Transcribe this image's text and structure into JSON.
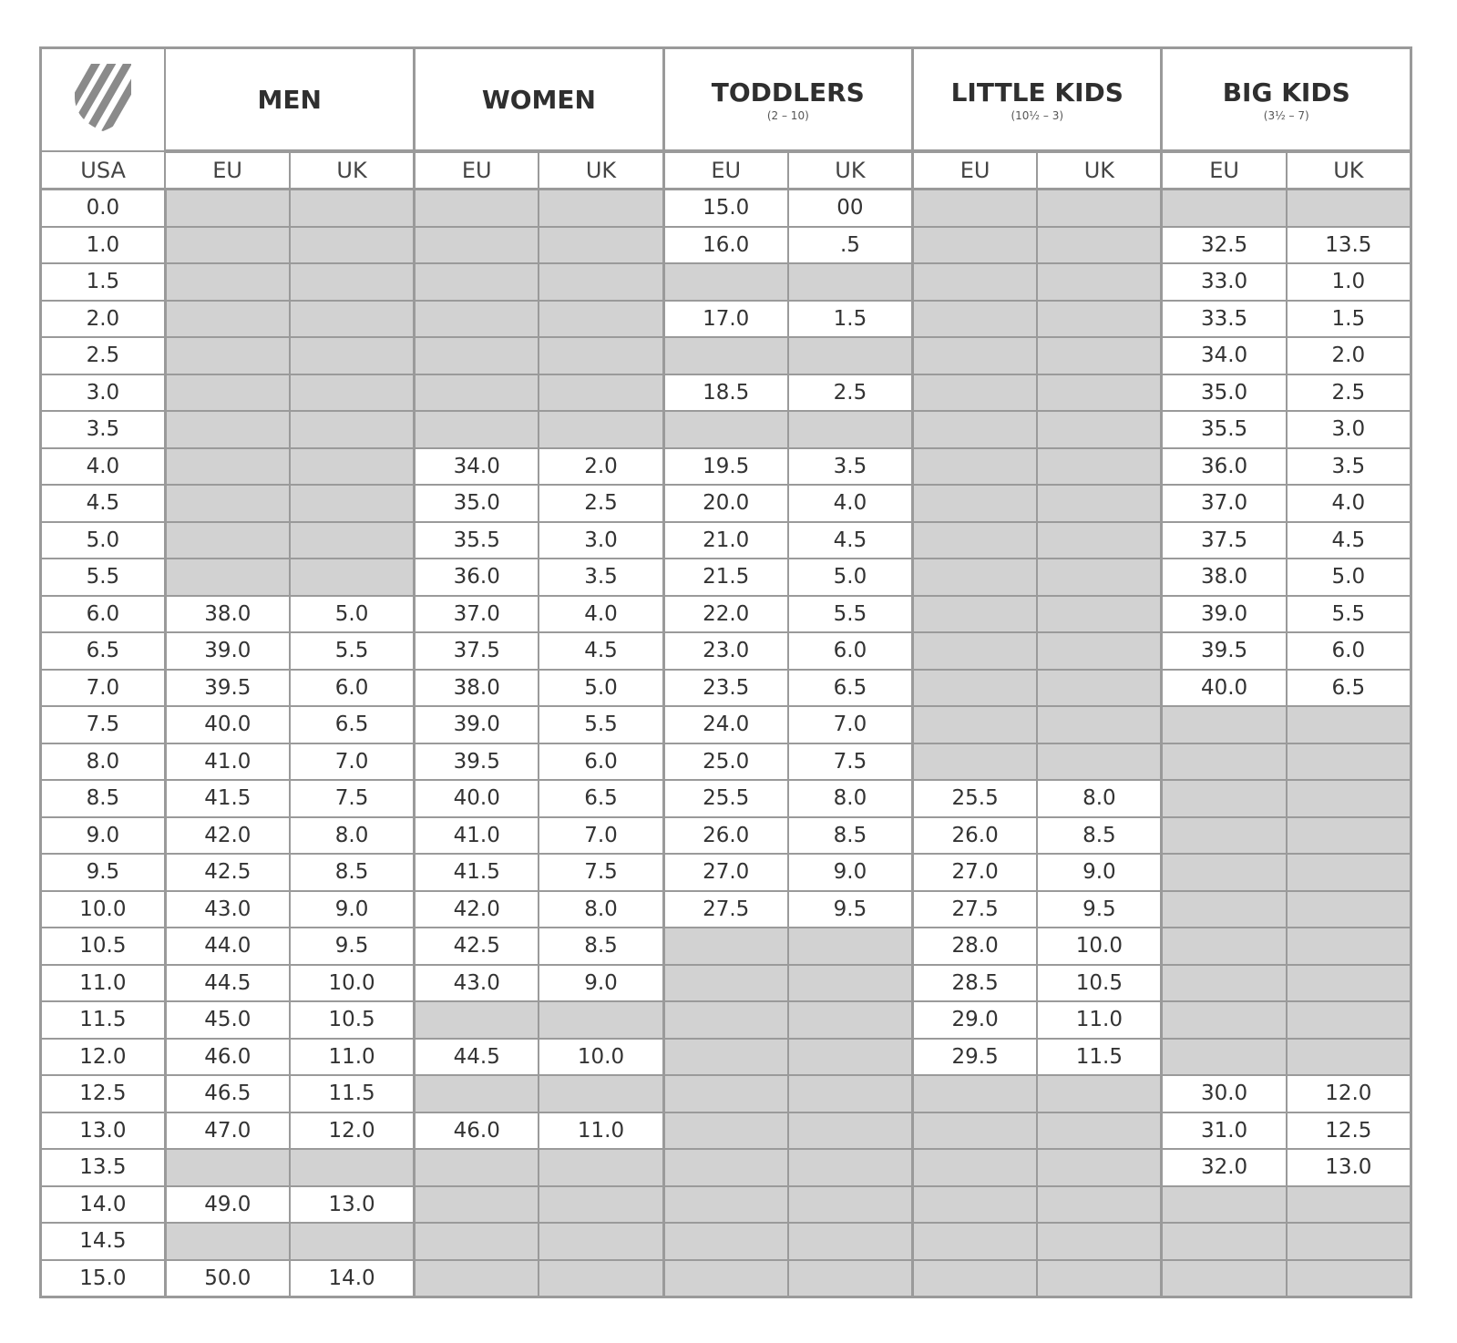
{
  "header": {
    "groups": [
      {
        "title": "MEN"
      },
      {
        "title": "WOMEN"
      },
      {
        "title": "TODDLERS",
        "subtitle": "(2 – 10)"
      },
      {
        "title": "LITTLE KIDS",
        "subtitle": "(10½ – 3)"
      },
      {
        "title": "BIG KIDS",
        "subtitle": "(3½ – 7)"
      }
    ],
    "columns": [
      "USA",
      "EU",
      "UK",
      "EU",
      "UK",
      "EU",
      "UK",
      "EU",
      "UK",
      "EU",
      "UK"
    ]
  },
  "table": {
    "rows": [
      [
        "0.0",
        null,
        null,
        null,
        null,
        "15.0",
        "00",
        null,
        null,
        null,
        null
      ],
      [
        "1.0",
        null,
        null,
        null,
        null,
        "16.0",
        ".5",
        null,
        null,
        "32.5",
        "13.5"
      ],
      [
        "1.5",
        null,
        null,
        null,
        null,
        null,
        null,
        null,
        null,
        "33.0",
        "1.0"
      ],
      [
        "2.0",
        null,
        null,
        null,
        null,
        "17.0",
        "1.5",
        null,
        null,
        "33.5",
        "1.5"
      ],
      [
        "2.5",
        null,
        null,
        null,
        null,
        null,
        null,
        null,
        null,
        "34.0",
        "2.0"
      ],
      [
        "3.0",
        null,
        null,
        null,
        null,
        "18.5",
        "2.5",
        null,
        null,
        "35.0",
        "2.5"
      ],
      [
        "3.5",
        null,
        null,
        null,
        null,
        null,
        null,
        null,
        null,
        "35.5",
        "3.0"
      ],
      [
        "4.0",
        null,
        null,
        "34.0",
        "2.0",
        "19.5",
        "3.5",
        null,
        null,
        "36.0",
        "3.5"
      ],
      [
        "4.5",
        null,
        null,
        "35.0",
        "2.5",
        "20.0",
        "4.0",
        null,
        null,
        "37.0",
        "4.0"
      ],
      [
        "5.0",
        null,
        null,
        "35.5",
        "3.0",
        "21.0",
        "4.5",
        null,
        null,
        "37.5",
        "4.5"
      ],
      [
        "5.5",
        null,
        null,
        "36.0",
        "3.5",
        "21.5",
        "5.0",
        null,
        null,
        "38.0",
        "5.0"
      ],
      [
        "6.0",
        "38.0",
        "5.0",
        "37.0",
        "4.0",
        "22.0",
        "5.5",
        null,
        null,
        "39.0",
        "5.5"
      ],
      [
        "6.5",
        "39.0",
        "5.5",
        "37.5",
        "4.5",
        "23.0",
        "6.0",
        null,
        null,
        "39.5",
        "6.0"
      ],
      [
        "7.0",
        "39.5",
        "6.0",
        "38.0",
        "5.0",
        "23.5",
        "6.5",
        null,
        null,
        "40.0",
        "6.5"
      ],
      [
        "7.5",
        "40.0",
        "6.5",
        "39.0",
        "5.5",
        "24.0",
        "7.0",
        null,
        null,
        null,
        null
      ],
      [
        "8.0",
        "41.0",
        "7.0",
        "39.5",
        "6.0",
        "25.0",
        "7.5",
        null,
        null,
        null,
        null
      ],
      [
        "8.5",
        "41.5",
        "7.5",
        "40.0",
        "6.5",
        "25.5",
        "8.0",
        "25.5",
        "8.0",
        null,
        null
      ],
      [
        "9.0",
        "42.0",
        "8.0",
        "41.0",
        "7.0",
        "26.0",
        "8.5",
        "26.0",
        "8.5",
        null,
        null
      ],
      [
        "9.5",
        "42.5",
        "8.5",
        "41.5",
        "7.5",
        "27.0",
        "9.0",
        "27.0",
        "9.0",
        null,
        null
      ],
      [
        "10.0",
        "43.0",
        "9.0",
        "42.0",
        "8.0",
        "27.5",
        "9.5",
        "27.5",
        "9.5",
        null,
        null
      ],
      [
        "10.5",
        "44.0",
        "9.5",
        "42.5",
        "8.5",
        null,
        null,
        "28.0",
        "10.0",
        null,
        null
      ],
      [
        "11.0",
        "44.5",
        "10.0",
        "43.0",
        "9.0",
        null,
        null,
        "28.5",
        "10.5",
        null,
        null
      ],
      [
        "11.5",
        "45.0",
        "10.5",
        null,
        null,
        null,
        null,
        "29.0",
        "11.0",
        null,
        null
      ],
      [
        "12.0",
        "46.0",
        "11.0",
        "44.5",
        "10.0",
        null,
        null,
        "29.5",
        "11.5",
        null,
        null
      ],
      [
        "12.5",
        "46.5",
        "11.5",
        null,
        null,
        null,
        null,
        null,
        null,
        "30.0",
        "12.0"
      ],
      [
        "13.0",
        "47.0",
        "12.0",
        "46.0",
        "11.0",
        null,
        null,
        null,
        null,
        "31.0",
        "12.5"
      ],
      [
        "13.5",
        null,
        null,
        null,
        null,
        null,
        null,
        null,
        null,
        "32.0",
        "13.0"
      ],
      [
        "14.0",
        "49.0",
        "13.0",
        null,
        null,
        null,
        null,
        null,
        null,
        null,
        null
      ],
      [
        "14.5",
        null,
        null,
        null,
        null,
        null,
        null,
        null,
        null,
        null,
        null
      ],
      [
        "15.0",
        "50.0",
        "14.0",
        null,
        null,
        null,
        null,
        null,
        null,
        null,
        null
      ]
    ]
  }
}
